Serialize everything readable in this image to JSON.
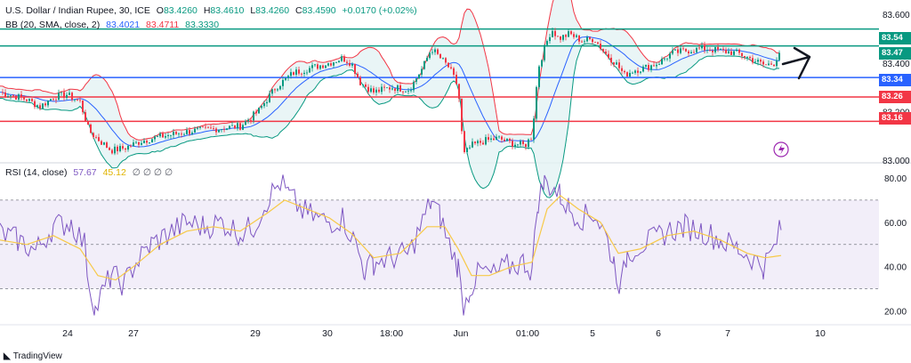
{
  "header": {
    "symbol": "U.S. Dollar / Indian Rupee, 30, ICE",
    "ohlc": [
      {
        "k": "O",
        "v": "83.4260"
      },
      {
        "k": "H",
        "v": "83.4610"
      },
      {
        "k": "L",
        "v": "83.4260"
      },
      {
        "k": "C",
        "v": "83.4590"
      }
    ],
    "change": "+0.0170 (+0.02%)",
    "bb_label": "BB (20, SMA, close, 2)",
    "bb_values": [
      "83.4021",
      "83.4711",
      "83.3330"
    ],
    "rsi_label": "RSI (14, close)",
    "rsi_values": [
      "57.67",
      "45.12"
    ],
    "rsi_extra": "∅ ∅ ∅ ∅"
  },
  "colors": {
    "up": "#089981",
    "down": "#f23645",
    "bb_basis": "#2962ff",
    "bb_upper": "#f23645",
    "bb_lower": "#089981",
    "rsi": "#7e57c2",
    "rsi_ma": "#f7c948",
    "green_level": "#089981",
    "blue_level": "#2962ff",
    "red_level": "#f23645"
  },
  "price_axis": [
    "83.600",
    "83.400",
    "83.200",
    "83.000"
  ],
  "rsi_axis": [
    "80.00",
    "60.00",
    "40.00",
    "20.00"
  ],
  "x_axis": [
    "24",
    "27",
    "29",
    "30",
    "18:00",
    "Jun",
    "01:00",
    "5",
    "6",
    "7",
    "10"
  ],
  "level_badges": [
    {
      "text": "83.54",
      "color": "green"
    },
    {
      "text": "83.47",
      "color": "green"
    },
    {
      "text": "83.34",
      "color": "blue"
    },
    {
      "text": "83.26",
      "color": "red"
    },
    {
      "text": "83.16",
      "color": "red"
    }
  ],
  "logo_text": "TradingView",
  "chart_data": [
    {
      "type": "candlestick",
      "title": "U.S. Dollar / Indian Rupee, 30, ICE",
      "ylim": [
        83.0,
        83.63
      ],
      "horizontal_levels": [
        83.54,
        83.47,
        83.34,
        83.26,
        83.16
      ],
      "close_path": [
        [
          0,
          83.28
        ],
        [
          30,
          83.25
        ],
        [
          45,
          83.22
        ],
        [
          60,
          83.26
        ],
        [
          75,
          83.27
        ],
        [
          90,
          83.24
        ],
        [
          100,
          83.12
        ],
        [
          112,
          83.08
        ],
        [
          125,
          83.04
        ],
        [
          140,
          83.05
        ],
        [
          160,
          83.08
        ],
        [
          185,
          83.1
        ],
        [
          215,
          83.12
        ],
        [
          245,
          83.13
        ],
        [
          270,
          83.14
        ],
        [
          290,
          83.2
        ],
        [
          310,
          83.3
        ],
        [
          330,
          83.36
        ],
        [
          350,
          83.38
        ],
        [
          370,
          83.4
        ],
        [
          385,
          83.42
        ],
        [
          395,
          83.4
        ],
        [
          405,
          83.32
        ],
        [
          420,
          83.28
        ],
        [
          440,
          83.3
        ],
        [
          460,
          83.29
        ],
        [
          475,
          83.38
        ],
        [
          485,
          83.46
        ],
        [
          495,
          83.42
        ],
        [
          505,
          83.38
        ],
        [
          515,
          83.3
        ],
        [
          521,
          83.02
        ],
        [
          530,
          83.06
        ],
        [
          545,
          83.08
        ],
        [
          560,
          83.09
        ],
        [
          575,
          83.07
        ],
        [
          590,
          83.06
        ],
        [
          598,
          83.1
        ],
        [
          605,
          83.38
        ],
        [
          612,
          83.46
        ],
        [
          620,
          83.54
        ],
        [
          628,
          83.5
        ],
        [
          640,
          83.52
        ],
        [
          655,
          83.49
        ],
        [
          668,
          83.5
        ],
        [
          680,
          83.44
        ],
        [
          692,
          83.4
        ],
        [
          702,
          83.35
        ],
        [
          712,
          83.37
        ],
        [
          725,
          83.38
        ],
        [
          740,
          83.4
        ],
        [
          755,
          83.44
        ],
        [
          770,
          83.45
        ],
        [
          790,
          83.46
        ],
        [
          810,
          83.45
        ],
        [
          830,
          83.44
        ],
        [
          848,
          83.41
        ],
        [
          860,
          83.39
        ],
        [
          870,
          83.4
        ],
        [
          878,
          83.46
        ]
      ],
      "bollinger": {
        "period": 20,
        "stdev": 2,
        "basis": 83.4021,
        "upper": 83.4711,
        "lower": 83.333
      },
      "last": {
        "open": 83.426,
        "high": 83.461,
        "low": 83.426,
        "close": 83.459
      }
    },
    {
      "type": "line",
      "title": "RSI (14, close)",
      "ylim": [
        15,
        84
      ],
      "bands": [
        70,
        50,
        30
      ],
      "series": [
        {
          "name": "RSI",
          "last": 57.67,
          "points": [
            [
              0,
              55
            ],
            [
              20,
              52
            ],
            [
              40,
              47
            ],
            [
              60,
              58
            ],
            [
              80,
              60
            ],
            [
              95,
              50
            ],
            [
              100,
              33
            ],
            [
              107,
              20
            ],
            [
              115,
              28
            ],
            [
              125,
              36
            ],
            [
              140,
              32
            ],
            [
              150,
              40
            ],
            [
              170,
              50
            ],
            [
              190,
              55
            ],
            [
              210,
              60
            ],
            [
              230,
              58
            ],
            [
              250,
              60
            ],
            [
              270,
              55
            ],
            [
              285,
              58
            ],
            [
              300,
              70
            ],
            [
              315,
              78
            ],
            [
              325,
              72
            ],
            [
              340,
              65
            ],
            [
              355,
              62
            ],
            [
              370,
              60
            ],
            [
              385,
              62
            ],
            [
              400,
              50
            ],
            [
              410,
              38
            ],
            [
              420,
              42
            ],
            [
              440,
              44
            ],
            [
              460,
              46
            ],
            [
              475,
              60
            ],
            [
              485,
              70
            ],
            [
              495,
              62
            ],
            [
              505,
              50
            ],
            [
              515,
              40
            ],
            [
              521,
              20
            ],
            [
              528,
              30
            ],
            [
              540,
              38
            ],
            [
              555,
              36
            ],
            [
              570,
              40
            ],
            [
              590,
              42
            ],
            [
              598,
              38
            ],
            [
              605,
              70
            ],
            [
              612,
              78
            ],
            [
              620,
              76
            ],
            [
              630,
              72
            ],
            [
              640,
              66
            ],
            [
              655,
              62
            ],
            [
              668,
              64
            ],
            [
              680,
              55
            ],
            [
              690,
              42
            ],
            [
              698,
              30
            ],
            [
              705,
              46
            ],
            [
              720,
              50
            ],
            [
              735,
              52
            ],
            [
              750,
              56
            ],
            [
              770,
              58
            ],
            [
              790,
              56
            ],
            [
              810,
              52
            ],
            [
              830,
              48
            ],
            [
              845,
              44
            ],
            [
              858,
              40
            ],
            [
              870,
              48
            ],
            [
              878,
              58
            ]
          ]
        },
        {
          "name": "MA",
          "last": 45.12,
          "points": [
            [
              0,
              52
            ],
            [
              30,
              50
            ],
            [
              60,
              54
            ],
            [
              90,
              48
            ],
            [
              110,
              36
            ],
            [
              130,
              34
            ],
            [
              150,
              40
            ],
            [
              180,
              50
            ],
            [
              210,
              56
            ],
            [
              240,
              58
            ],
            [
              270,
              56
            ],
            [
              300,
              64
            ],
            [
              320,
              70
            ],
            [
              345,
              66
            ],
            [
              370,
              62
            ],
            [
              395,
              55
            ],
            [
              420,
              44
            ],
            [
              450,
              46
            ],
            [
              480,
              58
            ],
            [
              500,
              58
            ],
            [
              515,
              48
            ],
            [
              530,
              36
            ],
            [
              550,
              36
            ],
            [
              575,
              40
            ],
            [
              598,
              42
            ],
            [
              615,
              66
            ],
            [
              630,
              72
            ],
            [
              650,
              66
            ],
            [
              675,
              60
            ],
            [
              695,
              46
            ],
            [
              720,
              48
            ],
            [
              750,
              54
            ],
            [
              780,
              56
            ],
            [
              810,
              52
            ],
            [
              840,
              46
            ],
            [
              860,
              44
            ],
            [
              878,
              45
            ]
          ]
        }
      ]
    }
  ]
}
